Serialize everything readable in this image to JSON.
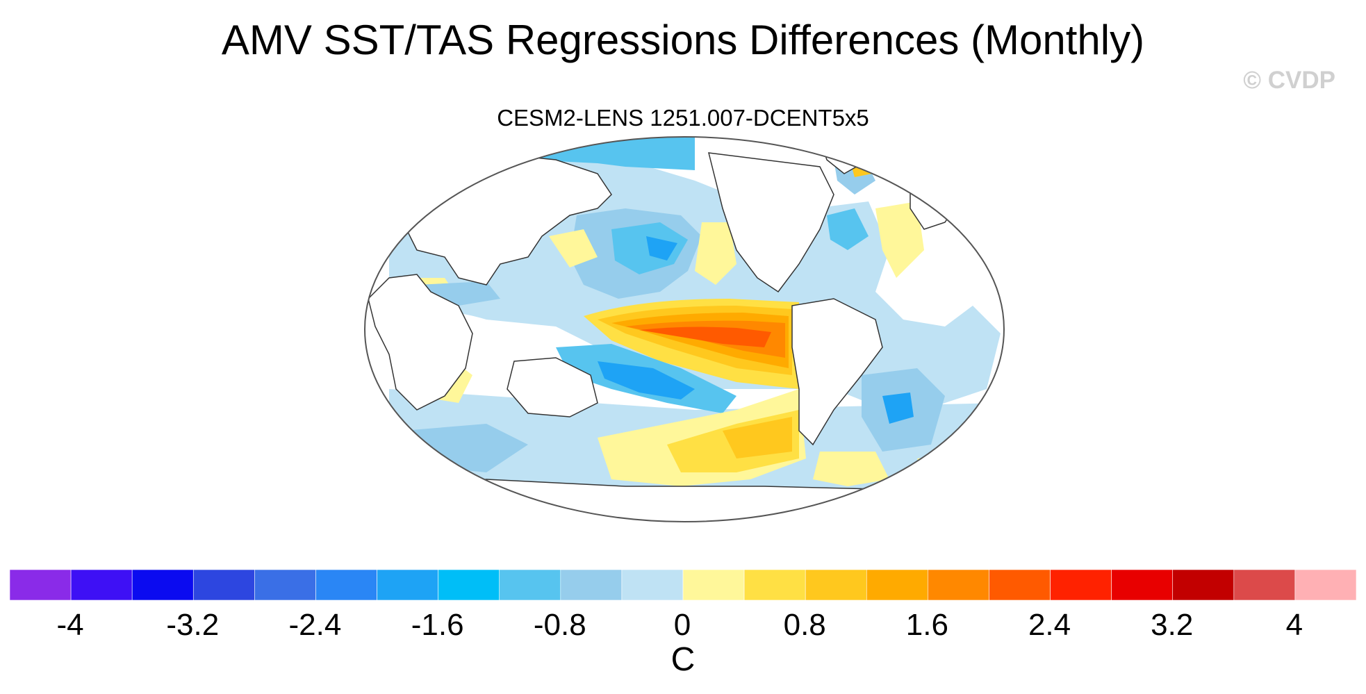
{
  "title": "AMV SST/TAS Regressions Differences (Monthly)",
  "watermark": "© CVDP",
  "subtitle": "CESM2-LENS 1251.007-DCENT5x5",
  "colorbar": {
    "colors": [
      "#8A2BE8",
      "#3E10F5",
      "#0B0BF0",
      "#2D46E0",
      "#3A6FE6",
      "#2A86F5",
      "#1EA3F5",
      "#00BEF7",
      "#57C4EF",
      "#96CDEC",
      "#BFE2F4",
      "#FFF79A",
      "#FFE044",
      "#FFC81E",
      "#FFAA00",
      "#FF8800",
      "#FF5A00",
      "#FF2200",
      "#E80000",
      "#C20000",
      "#DC4A4A",
      "#FFB0B4"
    ],
    "tick_labels": [
      "-4",
      "-3.2",
      "-2.4",
      "-1.6",
      "-0.8",
      "0",
      "0.8",
      "1.6",
      "2.4",
      "3.2",
      "4"
    ],
    "units": "C"
  }
}
